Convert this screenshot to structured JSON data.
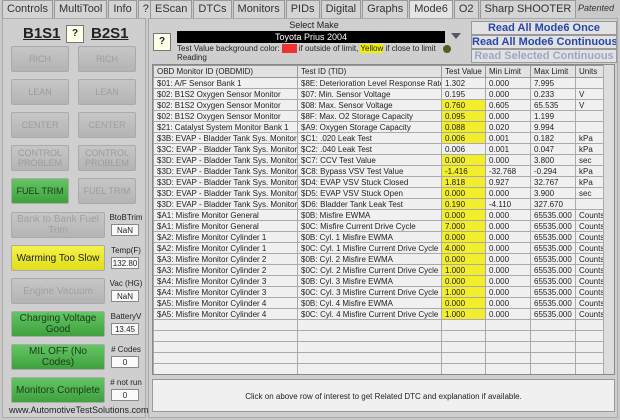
{
  "left_tabs": [
    "Controls",
    "MultiTool",
    "Info",
    "?"
  ],
  "right_tabs": [
    "EScan",
    "DTCs",
    "Monitors",
    "PIDs",
    "Digital",
    "Graphs",
    "Mode6",
    "O2",
    "Sharp SHOOTER"
  ],
  "active_tab": "Mode6",
  "patented": "Patented",
  "left": {
    "sensor1": "B1S1",
    "sensor2": "B2S1",
    "help": "?",
    "grid_buttons": [
      [
        "RICH",
        "RICH"
      ],
      [
        "LEAN",
        "LEAN"
      ],
      [
        "CENTER",
        "CENTER"
      ],
      [
        "CONTROL PROBLEM",
        "CONTROL PROBLEM"
      ],
      [
        "FUEL TRIM",
        "FUEL TRIM"
      ]
    ],
    "indicators": [
      {
        "label": "Bank to Bank Fuel Trim",
        "state": "off",
        "side_label": "BtoBTrim",
        "value": "NaN"
      },
      {
        "label": "Warming Too Slow",
        "state": "yellow",
        "side_label": "Temp(F)",
        "value": "132.80"
      },
      {
        "label": "Engine Vacuum",
        "state": "off",
        "side_label": "Vac (HG)",
        "value": "NaN"
      },
      {
        "label": "Charging Voltage Good",
        "state": "green",
        "side_label": "BatteryV",
        "value": "13.45"
      },
      {
        "label": "MIL OFF (No Codes)",
        "state": "green",
        "side_label": "# Codes",
        "value": "0"
      },
      {
        "label": "Monitors Complete",
        "state": "green",
        "side_label": "# not run",
        "value": "0"
      }
    ],
    "url": "www.AutomotiveTestSolutions.com"
  },
  "mode6": {
    "help": "?",
    "select_make_label": "Select Make",
    "make": "Toyota Prius 2004",
    "legend_prefix": "Test Value background color:",
    "legend_red": "Red",
    "legend_mid": "if outside of limit,",
    "legend_yellow": "Yellow",
    "legend_suffix": "if close to limit",
    "reading": "Reading",
    "buttons": [
      "Read All Mode6 Once",
      "Read All Mode6 Continuous",
      "Read Selected Continuous"
    ],
    "columns": [
      "OBD Monitor ID (OBDMID)",
      "Test ID (TID)",
      "Test Value",
      "Min Limit",
      "Max Limit",
      "Units"
    ],
    "rows": [
      [
        "$01: A/F Sensor Bank 1",
        "$8E: Deterioration Level Response Rate",
        "1.302",
        "0.000",
        "7.995",
        "",
        false
      ],
      [
        "$02: B1S2 Oxygen Sensor Monitor",
        "$07: Min. Sensor Voltage",
        "0.195",
        "0.000",
        "0.233",
        "V",
        false
      ],
      [
        "$02: B1S2 Oxygen Sensor Monitor",
        "$08: Max. Sensor Voltage",
        "0.760",
        "0.605",
        "65.535",
        "V",
        true
      ],
      [
        "$02: B1S2 Oxygen Sensor Monitor",
        "$8F: Max. O2 Storage Capacity",
        "0.095",
        "0.000",
        "1.199",
        "",
        true
      ],
      [
        "$21: Catalyst System Monitor Bank 1",
        "$A9: Oxygen Storage Capacity",
        "0.088",
        "0.020",
        "9.994",
        "",
        true
      ],
      [
        "$3B: EVAP - Bladder Tank Sys. Monitor",
        "$C1: .020 Leak Test",
        "0.006",
        "0.001",
        "0.182",
        "kPa",
        true
      ],
      [
        "$3C: EVAP - Bladder Tank Sys. Monitor",
        "$C2: .040 Leak Test",
        "0.006",
        "0.001",
        "0.047",
        "kPa",
        false
      ],
      [
        "$3D: EVAP - Bladder Tank Sys. Monitor",
        "$C7: CCV Test Value",
        "0.000",
        "0.000",
        "3.800",
        "sec",
        true
      ],
      [
        "$3D: EVAP - Bladder Tank Sys. Monitor",
        "$C8: Bypass VSV Test Value",
        "-1.416",
        "-32.768",
        "-0.294",
        "kPa",
        true
      ],
      [
        "$3D: EVAP - Bladder Tank Sys. Monitor",
        "$D4: EVAP VSV Stuck Closed",
        "1.818",
        "0.927",
        "32.767",
        "kPa",
        true
      ],
      [
        "$3D: EVAP - Bladder Tank Sys. Monitor",
        "$D5: EVAP VSV Stuck Open",
        "0.000",
        "0.000",
        "3.900",
        "sec",
        true
      ],
      [
        "$3D: EVAP - Bladder Tank Sys. Monitor",
        "$D6: Bladder Tank Leak Test",
        "0.190",
        "-4.110",
        "327.670",
        "",
        true
      ],
      [
        "$A1: Misfire Monitor General",
        "$0B: Misfire EWMA",
        "0.000",
        "0.000",
        "65535.000",
        "Counts",
        true
      ],
      [
        "$A1: Misfire Monitor General",
        "$0C: Misfire Current Drive Cycle",
        "7.000",
        "0.000",
        "65535.000",
        "Counts",
        true
      ],
      [
        "$A2: Misfire Monitor Cylinder 1",
        "$0B: Cyl. 1 Misfire EWMA",
        "0.000",
        "0.000",
        "65535.000",
        "Counts",
        true
      ],
      [
        "$A2: Misfire Monitor Cylinder 1",
        "$0C: Cyl. 1 Misfire Current Drive Cycle",
        "4.000",
        "0.000",
        "65535.000",
        "Counts",
        true
      ],
      [
        "$A3: Misfire Monitor Cylinder 2",
        "$0B: Cyl. 2 Misfire EWMA",
        "0.000",
        "0.000",
        "65535.000",
        "Counts",
        true
      ],
      [
        "$A3: Misfire Monitor Cylinder 2",
        "$0C: Cyl. 2 Misfire Current Drive Cycle",
        "1.000",
        "0.000",
        "65535.000",
        "Counts",
        true
      ],
      [
        "$A4: Misfire Monitor Cylinder 3",
        "$0B: Cyl. 3 Misfire EWMA",
        "0.000",
        "0.000",
        "65535.000",
        "Counts",
        true
      ],
      [
        "$A4: Misfire Monitor Cylinder 3",
        "$0C: Cyl. 3 Misfire Current Drive Cycle",
        "1.000",
        "0.000",
        "65535.000",
        "Counts",
        true
      ],
      [
        "$A5: Misfire Monitor Cylinder 4",
        "$0B: Cyl. 4 Misfire EWMA",
        "0.000",
        "0.000",
        "65535.000",
        "Counts",
        true
      ],
      [
        "$A5: Misfire Monitor Cylinder 4",
        "$0C: Cyl. 4 Misfire Current Drive Cycle",
        "1.000",
        "0.000",
        "65535.000",
        "Counts",
        true
      ]
    ],
    "description": "Click on above row of interest to get Related DTC and explanation if available."
  },
  "colors": {
    "highlight": "#f3ee2c",
    "green": "#4cb04c",
    "yellow": "#f0ee30",
    "button_text": "#2848a8"
  }
}
